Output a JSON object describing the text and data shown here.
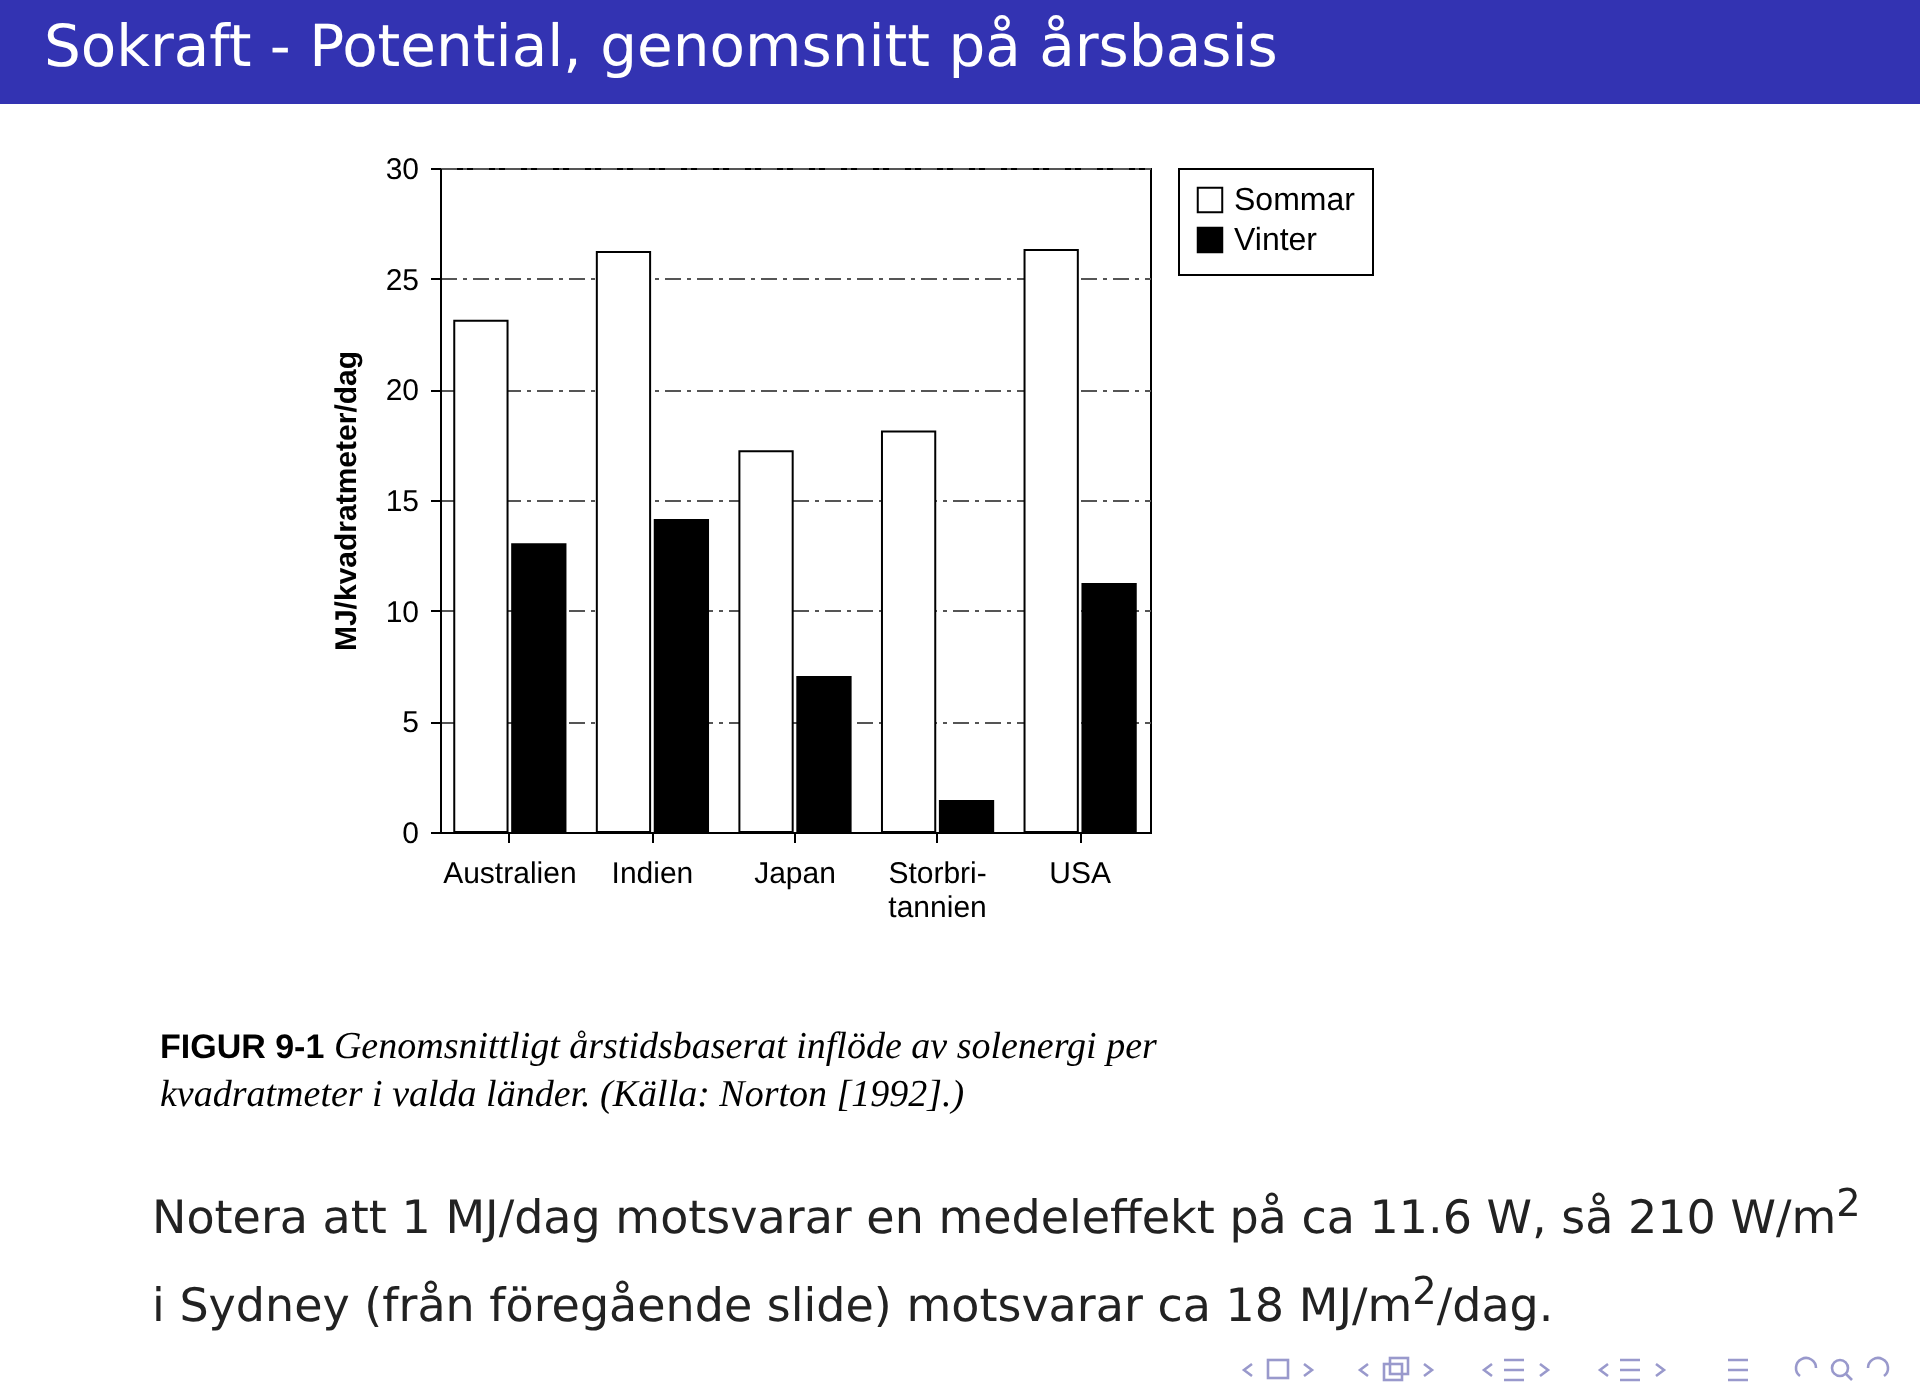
{
  "chart_data": {
    "type": "bar",
    "title": "Sokraft - Potential, genomsnitt på årsbasis",
    "categories": [
      "Australien",
      "Indien",
      "Japan",
      "Storbri- tannien",
      "USA"
    ],
    "series": [
      {
        "name": "Sommar",
        "color": "#ffffff",
        "values": [
          23.1,
          26.2,
          17.2,
          18.1,
          26.3
        ]
      },
      {
        "name": "Vinter",
        "color": "#000000",
        "values": [
          13.0,
          14.1,
          7.0,
          1.4,
          11.2
        ]
      }
    ],
    "ylabel": "MJ/kvadratmeter/dag",
    "ylim": [
      0,
      30
    ],
    "yticks": [
      0,
      5,
      10,
      15,
      20,
      25,
      30
    ],
    "grid": "y",
    "legend": "right",
    "annotations": [
      "FIGUR 9-1 Genomsnittligt årstidsbaserat inflöde av solenergi per kvadratmeter i valda länder. (Källa: Norton [1992].)",
      "Notera att 1 MJ/dag motsvarar en medeleffekt på ca 11.6 W, så 210 W/m$^{2}$ i Sydney (från föregående slide) motsvarar ca 18 MJ/m$^{2}$/dag."
    ]
  }
}
